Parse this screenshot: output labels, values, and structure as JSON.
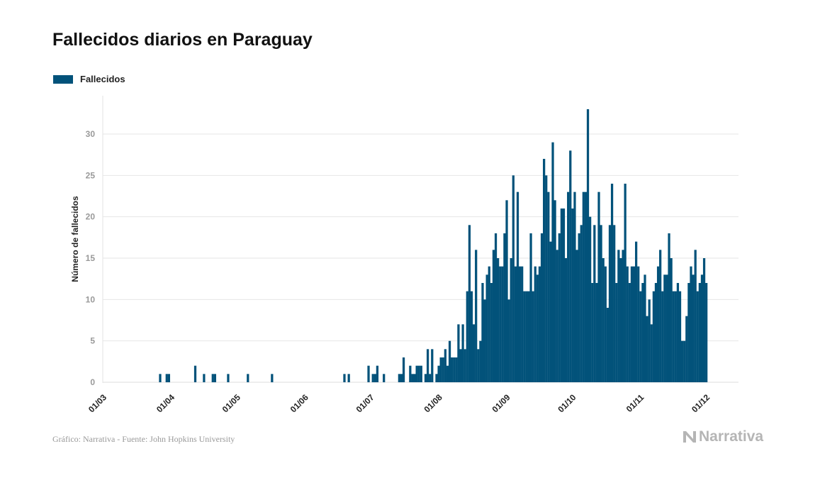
{
  "title": "Fallecidos diarios en Paraguay",
  "footer": {
    "source": "Gráfico: Narrativa - Fuente: John Hopkins University",
    "logo": "Narrativa"
  },
  "colors": {
    "bar": "#02527a",
    "grid": "#e6e6e6",
    "tick": "#999999"
  },
  "chart_data": {
    "type": "bar",
    "title": "Fallecidos diarios en Paraguay",
    "xlabel": "",
    "ylabel": "Número de fallecidos",
    "legend": [
      {
        "name": "Fallecidos",
        "position": "top-left"
      }
    ],
    "x_start_date": "2020-03-01",
    "ylim": [
      0,
      34.6
    ],
    "yticks": [
      0,
      5,
      10,
      15,
      20,
      25,
      30
    ],
    "xticks": [
      {
        "label": "01/03",
        "day": 0
      },
      {
        "label": "01/04",
        "day": 31
      },
      {
        "label": "01/05",
        "day": 61
      },
      {
        "label": "01/06",
        "day": 92
      },
      {
        "label": "01/07",
        "day": 122
      },
      {
        "label": "01/08",
        "day": 153
      },
      {
        "label": "01/09",
        "day": 184
      },
      {
        "label": "01/10",
        "day": 214
      },
      {
        "label": "01/11",
        "day": 245
      },
      {
        "label": "01/12",
        "day": 275
      }
    ],
    "grid": true,
    "series": [
      {
        "name": "Fallecidos",
        "values": [
          0,
          0,
          0,
          0,
          0,
          0,
          0,
          0,
          0,
          0,
          0,
          0,
          0,
          0,
          0,
          0,
          0,
          0,
          0,
          0,
          0,
          0,
          0,
          0,
          0,
          1,
          0,
          0,
          1,
          1,
          0,
          0,
          0,
          0,
          0,
          0,
          0,
          0,
          0,
          0,
          0,
          2,
          0,
          0,
          0,
          1,
          0,
          0,
          0,
          1,
          1,
          0,
          0,
          0,
          0,
          0,
          1,
          0,
          0,
          0,
          0,
          0,
          0,
          0,
          0,
          1,
          0,
          0,
          0,
          0,
          0,
          0,
          0,
          0,
          0,
          0,
          1,
          0,
          0,
          0,
          0,
          0,
          0,
          0,
          0,
          0,
          0,
          0,
          0,
          0,
          0,
          0,
          0,
          0,
          0,
          0,
          0,
          0,
          0,
          0,
          0,
          0,
          0,
          0,
          0,
          0,
          0,
          0,
          0,
          1,
          0,
          1,
          0,
          0,
          0,
          0,
          0,
          0,
          0,
          0,
          2,
          0,
          1,
          1,
          2,
          0,
          0,
          1,
          0,
          0,
          0,
          0,
          0,
          0,
          1,
          1,
          3,
          0,
          0,
          2,
          1,
          1,
          2,
          2,
          2,
          0,
          1,
          4,
          1,
          4,
          0,
          1,
          2,
          3,
          3,
          4,
          2,
          5,
          3,
          3,
          3,
          7,
          4,
          7,
          4,
          11,
          19,
          11,
          7,
          16,
          4,
          5,
          12,
          10,
          13,
          14,
          12,
          16,
          18,
          15,
          14,
          14,
          18,
          22,
          10,
          15,
          25,
          14,
          23,
          14,
          14,
          11,
          11,
          11,
          18,
          11,
          14,
          13,
          14,
          18,
          27,
          25,
          23,
          17,
          29,
          22,
          16,
          18,
          21,
          21,
          15,
          23,
          28,
          21,
          23,
          16,
          18,
          19,
          23,
          23,
          33,
          20,
          12,
          19,
          12,
          23,
          19,
          15,
          14,
          9,
          19,
          24,
          19,
          12,
          16,
          15,
          16,
          24,
          14,
          12,
          14,
          14,
          17,
          14,
          11,
          12,
          13,
          8,
          10,
          7,
          11,
          12,
          14,
          16,
          11,
          13,
          13,
          18,
          15,
          11,
          11,
          12,
          11,
          5,
          5,
          8,
          12,
          14,
          13,
          16,
          11,
          12,
          13,
          15,
          12
        ]
      }
    ]
  }
}
